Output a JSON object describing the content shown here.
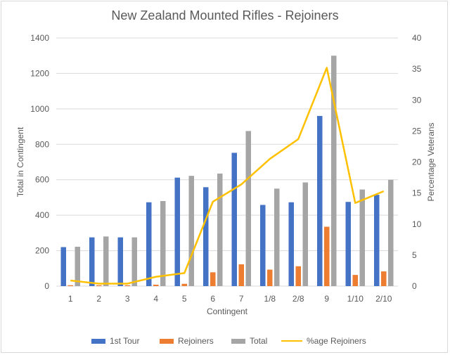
{
  "colors": {
    "first_tour": "#4472C4",
    "rejoiners": "#ED7D31",
    "total": "#A5A5A5",
    "pct_rejoiners": "#FFC000",
    "grid": "#d9d9d9",
    "text": "#595959"
  },
  "chart_data": {
    "type": "bar",
    "title": "New Zealand Mounted Rifles - Rejoiners",
    "xlabel": "Contingent",
    "ylabel": "Total in Contingent",
    "y2label": "Percentage Veterans",
    "categories": [
      "1",
      "2",
      "3",
      "4",
      "5",
      "6",
      "7",
      "1/8",
      "2/8",
      "9",
      "1/10",
      "2/10"
    ],
    "ylim": [
      0,
      1400
    ],
    "yticks": [
      0,
      200,
      400,
      600,
      800,
      1000,
      1200,
      1400
    ],
    "y2lim": [
      0,
      40
    ],
    "y2ticks": [
      0,
      5,
      10,
      15,
      20,
      25,
      30,
      35,
      40
    ],
    "grid": "horizontal",
    "legend_position": "bottom",
    "series": [
      {
        "name": "1st Tour",
        "type": "bar",
        "axis": "left",
        "color_key": "first_tour",
        "values": [
          220,
          275,
          275,
          473,
          612,
          558,
          752,
          458,
          473,
          960,
          475,
          515
        ]
      },
      {
        "name": "Rejoiners",
        "type": "bar",
        "axis": "left",
        "color_key": "rejoiners",
        "values": [
          5,
          5,
          5,
          8,
          13,
          78,
          123,
          93,
          112,
          335,
          63,
          83
        ]
      },
      {
        "name": "Total",
        "type": "bar",
        "axis": "left",
        "color_key": "total",
        "values": [
          222,
          280,
          275,
          480,
          622,
          635,
          875,
          550,
          585,
          1300,
          545,
          600
        ]
      },
      {
        "name": "%age Rejoiners",
        "type": "line",
        "axis": "right",
        "color_key": "pct_rejoiners",
        "values": [
          0.9,
          0.4,
          0.4,
          1.5,
          2.1,
          13.6,
          16.4,
          20.5,
          23.7,
          35.2,
          13.4,
          15.3
        ]
      }
    ]
  }
}
